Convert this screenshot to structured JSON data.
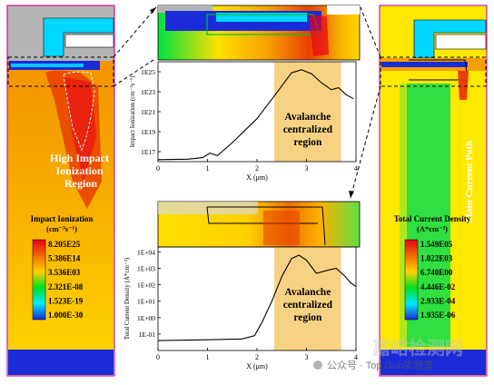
{
  "left_panel": {
    "region_label_line1": "High Impact",
    "region_label_line2": "Ionization",
    "region_label_line3": "Region",
    "legend_title": "Impact Ionization",
    "legend_unit": "(cm⁻³s⁻¹)",
    "legend_values": [
      "8.205E25",
      "5.386E14",
      "3.536E03",
      "2.321E-08",
      "1.523E-19",
      "1.000E-30"
    ]
  },
  "right_panel": {
    "path_label": "Main Current Path",
    "legend_title": "Total Current Density",
    "legend_unit": "(A*cm⁻²)",
    "legend_values": [
      "1.549E05",
      "1.022E03",
      "6.740E00",
      "4.446E-02",
      "2.933E-04",
      "1.935E-06"
    ]
  },
  "colors": {
    "max": "#e8001a",
    "high": "#f56a00",
    "mid_high": "#ffd200",
    "mid": "#00e020",
    "low": "#00e8ff",
    "min": "#1a2bd8",
    "highlight": "#f5c35a"
  },
  "chart_data": [
    {
      "type": "line",
      "title": "",
      "xlabel": "X (μm)",
      "ylabel": "Impact Ionization (cm⁻³s⁻¹)",
      "y_scale": "log",
      "xlim": [
        0,
        4
      ],
      "ylim_exp": [
        16,
        26
      ],
      "x_ticks": [
        "0",
        "1",
        "2",
        "3",
        "4"
      ],
      "y_ticks": [
        "1E17",
        "1E19",
        "1E21",
        "1E23",
        "1E25"
      ],
      "highlight_range": [
        2.35,
        3.7
      ],
      "annotation": [
        "Avalanche",
        "centralized",
        "region"
      ],
      "points": [
        [
          0,
          16.2
        ],
        [
          0.6,
          16.25
        ],
        [
          0.9,
          16.4
        ],
        [
          1.05,
          16.85
        ],
        [
          1.2,
          16.6
        ],
        [
          1.5,
          17.9
        ],
        [
          2.0,
          20.3
        ],
        [
          2.4,
          22.9
        ],
        [
          2.7,
          24.9
        ],
        [
          2.9,
          25.2
        ],
        [
          3.1,
          24.8
        ],
        [
          3.3,
          23.9
        ],
        [
          3.5,
          23.2
        ],
        [
          3.65,
          23.4
        ],
        [
          3.8,
          22.7
        ],
        [
          3.95,
          22.3
        ]
      ]
    },
    {
      "type": "line",
      "title": "",
      "xlabel": "X (μm)",
      "ylabel": "Total Current Density (A*cm⁻²)",
      "y_scale": "log",
      "xlim": [
        0,
        4
      ],
      "ylim_exp": [
        -2,
        4.3
      ],
      "x_ticks": [
        "0",
        "1",
        "2",
        "3",
        "4"
      ],
      "y_ticks": [
        "1E-01",
        "1E+00",
        "1E+01",
        "1E+02",
        "1E+03",
        "1E+04"
      ],
      "highlight_range": [
        2.35,
        3.7
      ],
      "annotation": [
        "Avalanche",
        "centralized",
        "region"
      ],
      "points": [
        [
          0,
          -1.4
        ],
        [
          1.0,
          -1.35
        ],
        [
          1.7,
          -1.3
        ],
        [
          1.95,
          -1.1
        ],
        [
          2.1,
          -0.3
        ],
        [
          2.3,
          1.0
        ],
        [
          2.5,
          2.5
        ],
        [
          2.7,
          3.6
        ],
        [
          2.85,
          3.8
        ],
        [
          3.0,
          3.5
        ],
        [
          3.2,
          2.7
        ],
        [
          3.45,
          2.9
        ],
        [
          3.6,
          3.0
        ],
        [
          3.75,
          2.6
        ],
        [
          3.9,
          2.1
        ],
        [
          4.0,
          1.9
        ]
      ]
    }
  ],
  "watermark": {
    "chinese": "嘉峪检测网",
    "account": "公众号 · Top Gun实验室"
  }
}
